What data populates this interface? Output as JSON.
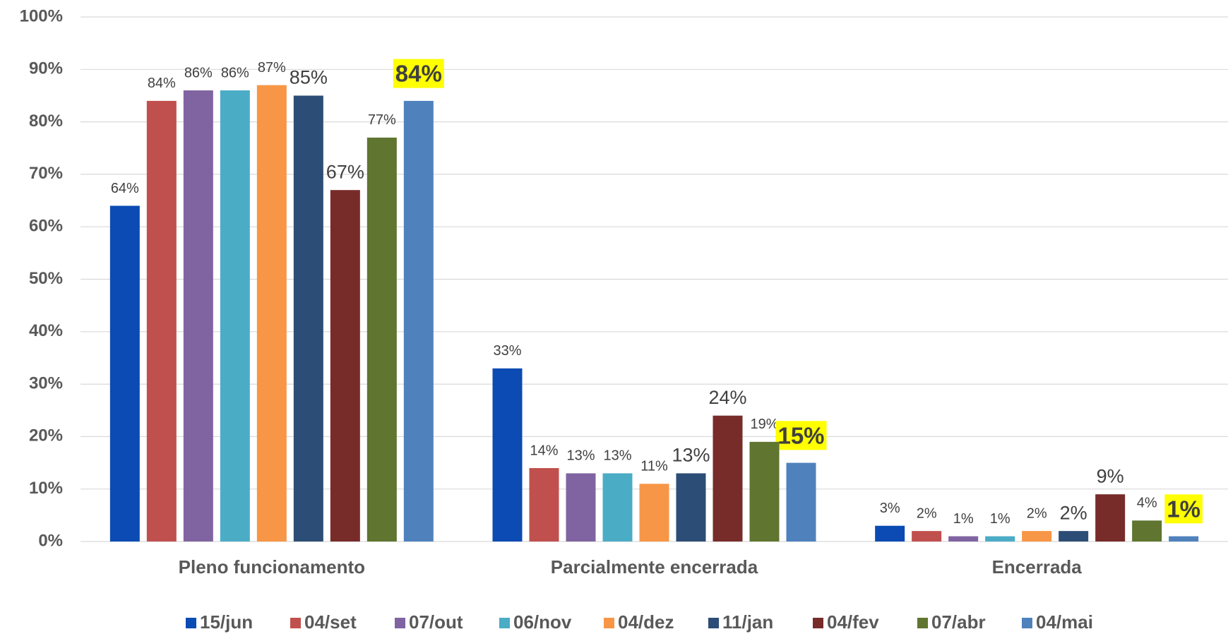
{
  "chart_data": {
    "type": "bar",
    "categories": [
      "Pleno funcionamento",
      "Parcialmente encerrada",
      "Encerrada"
    ],
    "ylim": [
      0,
      100
    ],
    "yticks": [
      {
        "value": 0,
        "label": "0%"
      },
      {
        "value": 10,
        "label": "10%"
      },
      {
        "value": 20,
        "label": "20%"
      },
      {
        "value": 30,
        "label": "30%"
      },
      {
        "value": 40,
        "label": "40%"
      },
      {
        "value": 50,
        "label": "50%"
      },
      {
        "value": 60,
        "label": "60%"
      },
      {
        "value": 70,
        "label": "70%"
      },
      {
        "value": 80,
        "label": "80%"
      },
      {
        "value": 90,
        "label": "90%"
      },
      {
        "value": 100,
        "label": "100%"
      }
    ],
    "grid": true,
    "legend": "bottom",
    "series": [
      {
        "name": "15/jun",
        "color": "#0b4bb3",
        "values": [
          64,
          33,
          3
        ],
        "value_labels": [
          "64%",
          "33%",
          "3%"
        ]
      },
      {
        "name": "04/set",
        "color": "#c0504d",
        "values": [
          84,
          14,
          2
        ],
        "value_labels": [
          "84%",
          "14%",
          "2%"
        ]
      },
      {
        "name": "07/out",
        "color": "#8064a2",
        "values": [
          86,
          13,
          1
        ],
        "value_labels": [
          "86%",
          "13%",
          "1%"
        ]
      },
      {
        "name": "06/nov",
        "color": "#4bacc6",
        "values": [
          86,
          13,
          1
        ],
        "value_labels": [
          "86%",
          "13%",
          "1%"
        ]
      },
      {
        "name": "04/dez",
        "color": "#f79646",
        "values": [
          87,
          11,
          2
        ],
        "value_labels": [
          "87%",
          "11%",
          "2%"
        ]
      },
      {
        "name": "11/jan",
        "color": "#2c4d75",
        "values": [
          85,
          13,
          2
        ],
        "value_labels": [
          "85%",
          "13%",
          "2%"
        ]
      },
      {
        "name": "04/fev",
        "color": "#772c2a",
        "values": [
          67,
          24,
          9
        ],
        "value_labels": [
          "67%",
          "24%",
          "9%"
        ]
      },
      {
        "name": "07/abr",
        "color": "#5f7530",
        "values": [
          77,
          19,
          4
        ],
        "value_labels": [
          "77%",
          "19%",
          "4%"
        ]
      },
      {
        "name": "04/mai",
        "color": "#4f81bd",
        "values": [
          84,
          15,
          1
        ],
        "value_labels": [
          "84%",
          "15%",
          "1%"
        ],
        "highlight": true
      }
    ]
  }
}
